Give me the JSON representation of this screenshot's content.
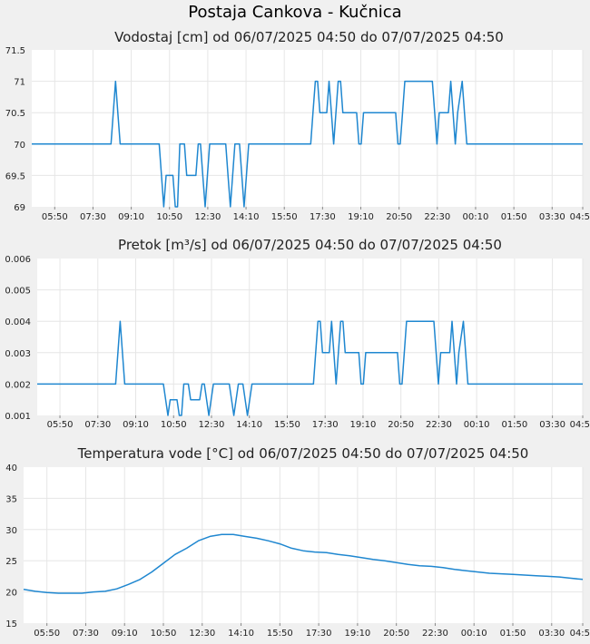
{
  "page": {
    "title": "Postaja Cankova - Kučnica"
  },
  "chart_data": [
    {
      "type": "line",
      "title": "Vodostaj [cm] od 06/07/2025 04:50 do 07/07/2025 04:50",
      "xlabel": "",
      "ylabel": "",
      "x_ticks": [
        "05:50",
        "07:30",
        "09:10",
        "10:50",
        "12:30",
        "14:10",
        "15:50",
        "17:30",
        "19:10",
        "20:50",
        "22:30",
        "00:10",
        "01:50",
        "03:30",
        "04:50"
      ],
      "y_ticks": [
        "69",
        "69.5",
        "70",
        "70.5",
        "71",
        "71.5"
      ],
      "ylim": [
        69,
        71.5
      ],
      "xlim_hours": [
        0,
        24
      ],
      "grid": true,
      "color": "#1f87d0",
      "series": [
        {
          "x": [
            0,
            3.45,
            3.55,
            3.65,
            3.75,
            3.85,
            5.55,
            5.65,
            5.75,
            5.85,
            6.15,
            6.25,
            6.35,
            6.45,
            6.65,
            6.75,
            7.15,
            7.25,
            7.35,
            7.45,
            7.55,
            7.65,
            7.75,
            7.85,
            7.95,
            8.05,
            8.45,
            8.55,
            8.65,
            8.75,
            8.85,
            9.05,
            9.15,
            9.25,
            9.35,
            9.45,
            12.15,
            12.25,
            12.35,
            12.45,
            12.55,
            12.85,
            12.95,
            13.05,
            13.15,
            13.25,
            13.35,
            13.45,
            13.55,
            14.15,
            14.25,
            14.35,
            14.45,
            15.85,
            15.95,
            16.05,
            16.15,
            16.25,
            17.35,
            17.45,
            17.55,
            17.65,
            17.75,
            18.15,
            18.25,
            18.35,
            18.45,
            18.55,
            18.75,
            18.85,
            18.95,
            19.05,
            19.15,
            19.25,
            19.35,
            19.45,
            24
          ],
          "y": [
            70,
            70,
            70.5,
            71,
            70.5,
            70,
            70,
            69.5,
            69,
            69.5,
            69.5,
            69,
            69,
            70,
            70,
            69.5,
            69.5,
            70,
            70,
            69.5,
            69,
            69.5,
            70,
            70,
            70,
            70,
            70,
            69.5,
            69,
            69.5,
            70,
            70,
            69.5,
            69,
            69.5,
            70,
            70,
            70.5,
            71,
            71,
            70.5,
            70.5,
            71,
            70.5,
            70,
            70.5,
            71,
            71,
            70.5,
            70.5,
            70,
            70,
            70.5,
            70.5,
            70,
            70,
            70.5,
            71,
            71,
            71,
            70.5,
            70,
            70.5,
            70.5,
            71,
            70.5,
            70,
            70.5,
            71,
            70.5,
            70,
            70,
            70,
            70,
            70,
            70,
            70
          ]
        }
      ]
    },
    {
      "type": "line",
      "title": "Pretok [m³/s] od 06/07/2025 04:50 do 07/07/2025 04:50",
      "xlabel": "",
      "ylabel": "",
      "x_ticks": [
        "05:50",
        "07:30",
        "09:10",
        "10:50",
        "12:30",
        "14:10",
        "15:50",
        "17:30",
        "19:10",
        "20:50",
        "22:30",
        "00:10",
        "01:50",
        "03:30",
        "04:50"
      ],
      "y_ticks": [
        "0.001",
        "0.002",
        "0.003",
        "0.004",
        "0.005",
        "0.006"
      ],
      "ylim": [
        0.001,
        0.006
      ],
      "xlim_hours": [
        0,
        24
      ],
      "grid": true,
      "color": "#1f87d0",
      "series": [
        {
          "x": [
            0,
            3.45,
            3.55,
            3.65,
            3.75,
            3.85,
            5.55,
            5.65,
            5.75,
            5.85,
            6.15,
            6.25,
            6.35,
            6.45,
            6.65,
            6.75,
            7.15,
            7.25,
            7.35,
            7.45,
            7.55,
            7.65,
            7.75,
            7.85,
            7.95,
            8.05,
            8.45,
            8.55,
            8.65,
            8.75,
            8.85,
            9.05,
            9.15,
            9.25,
            9.35,
            9.45,
            12.15,
            12.25,
            12.35,
            12.45,
            12.55,
            12.85,
            12.95,
            13.05,
            13.15,
            13.25,
            13.35,
            13.45,
            13.55,
            14.15,
            14.25,
            14.35,
            14.45,
            15.85,
            15.95,
            16.05,
            16.15,
            16.25,
            17.35,
            17.45,
            17.55,
            17.65,
            17.75,
            18.15,
            18.25,
            18.35,
            18.45,
            18.55,
            18.75,
            18.85,
            18.95,
            19.05,
            19.15,
            19.25,
            19.35,
            19.45,
            24
          ],
          "y": [
            0.002,
            0.002,
            0.003,
            0.004,
            0.003,
            0.002,
            0.002,
            0.0015,
            0.001,
            0.0015,
            0.0015,
            0.001,
            0.001,
            0.002,
            0.002,
            0.0015,
            0.0015,
            0.002,
            0.002,
            0.0015,
            0.001,
            0.0015,
            0.002,
            0.002,
            0.002,
            0.002,
            0.002,
            0.0015,
            0.001,
            0.0015,
            0.002,
            0.002,
            0.0015,
            0.001,
            0.0015,
            0.002,
            0.002,
            0.003,
            0.004,
            0.004,
            0.003,
            0.003,
            0.004,
            0.003,
            0.002,
            0.003,
            0.004,
            0.004,
            0.003,
            0.003,
            0.002,
            0.002,
            0.003,
            0.003,
            0.002,
            0.002,
            0.003,
            0.004,
            0.004,
            0.004,
            0.003,
            0.002,
            0.003,
            0.003,
            0.004,
            0.003,
            0.002,
            0.003,
            0.004,
            0.003,
            0.002,
            0.002,
            0.002,
            0.002,
            0.002,
            0.002,
            0.002
          ]
        }
      ]
    },
    {
      "type": "line",
      "title": "Temperatura vode [°C] od 06/07/2025 04:50 do 07/07/2025 04:50",
      "xlabel": "",
      "ylabel": "",
      "x_ticks": [
        "05:50",
        "07:30",
        "09:10",
        "10:50",
        "12:30",
        "14:10",
        "15:50",
        "17:30",
        "19:10",
        "20:50",
        "22:30",
        "00:10",
        "01:50",
        "03:30",
        "04:50"
      ],
      "y_ticks": [
        "15",
        "20",
        "25",
        "30",
        "35",
        "40"
      ],
      "ylim": [
        15,
        40
      ],
      "xlim_hours": [
        0,
        24
      ],
      "grid": true,
      "color": "#1f87d0",
      "series": [
        {
          "x": [
            0,
            0.5,
            1.0,
            1.5,
            2.0,
            2.5,
            3.0,
            3.5,
            4.0,
            4.5,
            5.0,
            5.5,
            6.0,
            6.5,
            7.0,
            7.5,
            8.0,
            8.5,
            9.0,
            9.5,
            10.0,
            10.5,
            11.0,
            11.5,
            12.0,
            12.5,
            13.0,
            13.5,
            14.0,
            14.5,
            15.0,
            15.5,
            16.0,
            16.5,
            17.0,
            17.5,
            18.0,
            18.5,
            19.0,
            19.5,
            20.0,
            20.5,
            21.0,
            21.5,
            22.0,
            22.5,
            23.0,
            23.5,
            24.0
          ],
          "y": [
            20.4,
            20.1,
            19.9,
            19.8,
            19.8,
            19.8,
            20.0,
            20.1,
            20.5,
            21.2,
            22.0,
            23.2,
            24.6,
            26.0,
            27.0,
            28.2,
            28.9,
            29.2,
            29.2,
            28.9,
            28.6,
            28.2,
            27.7,
            27.0,
            26.6,
            26.4,
            26.3,
            26.0,
            25.8,
            25.5,
            25.2,
            25.0,
            24.7,
            24.4,
            24.2,
            24.1,
            23.9,
            23.6,
            23.4,
            23.2,
            23.0,
            22.9,
            22.8,
            22.7,
            22.6,
            22.5,
            22.4,
            22.2,
            22.0
          ]
        }
      ]
    }
  ]
}
